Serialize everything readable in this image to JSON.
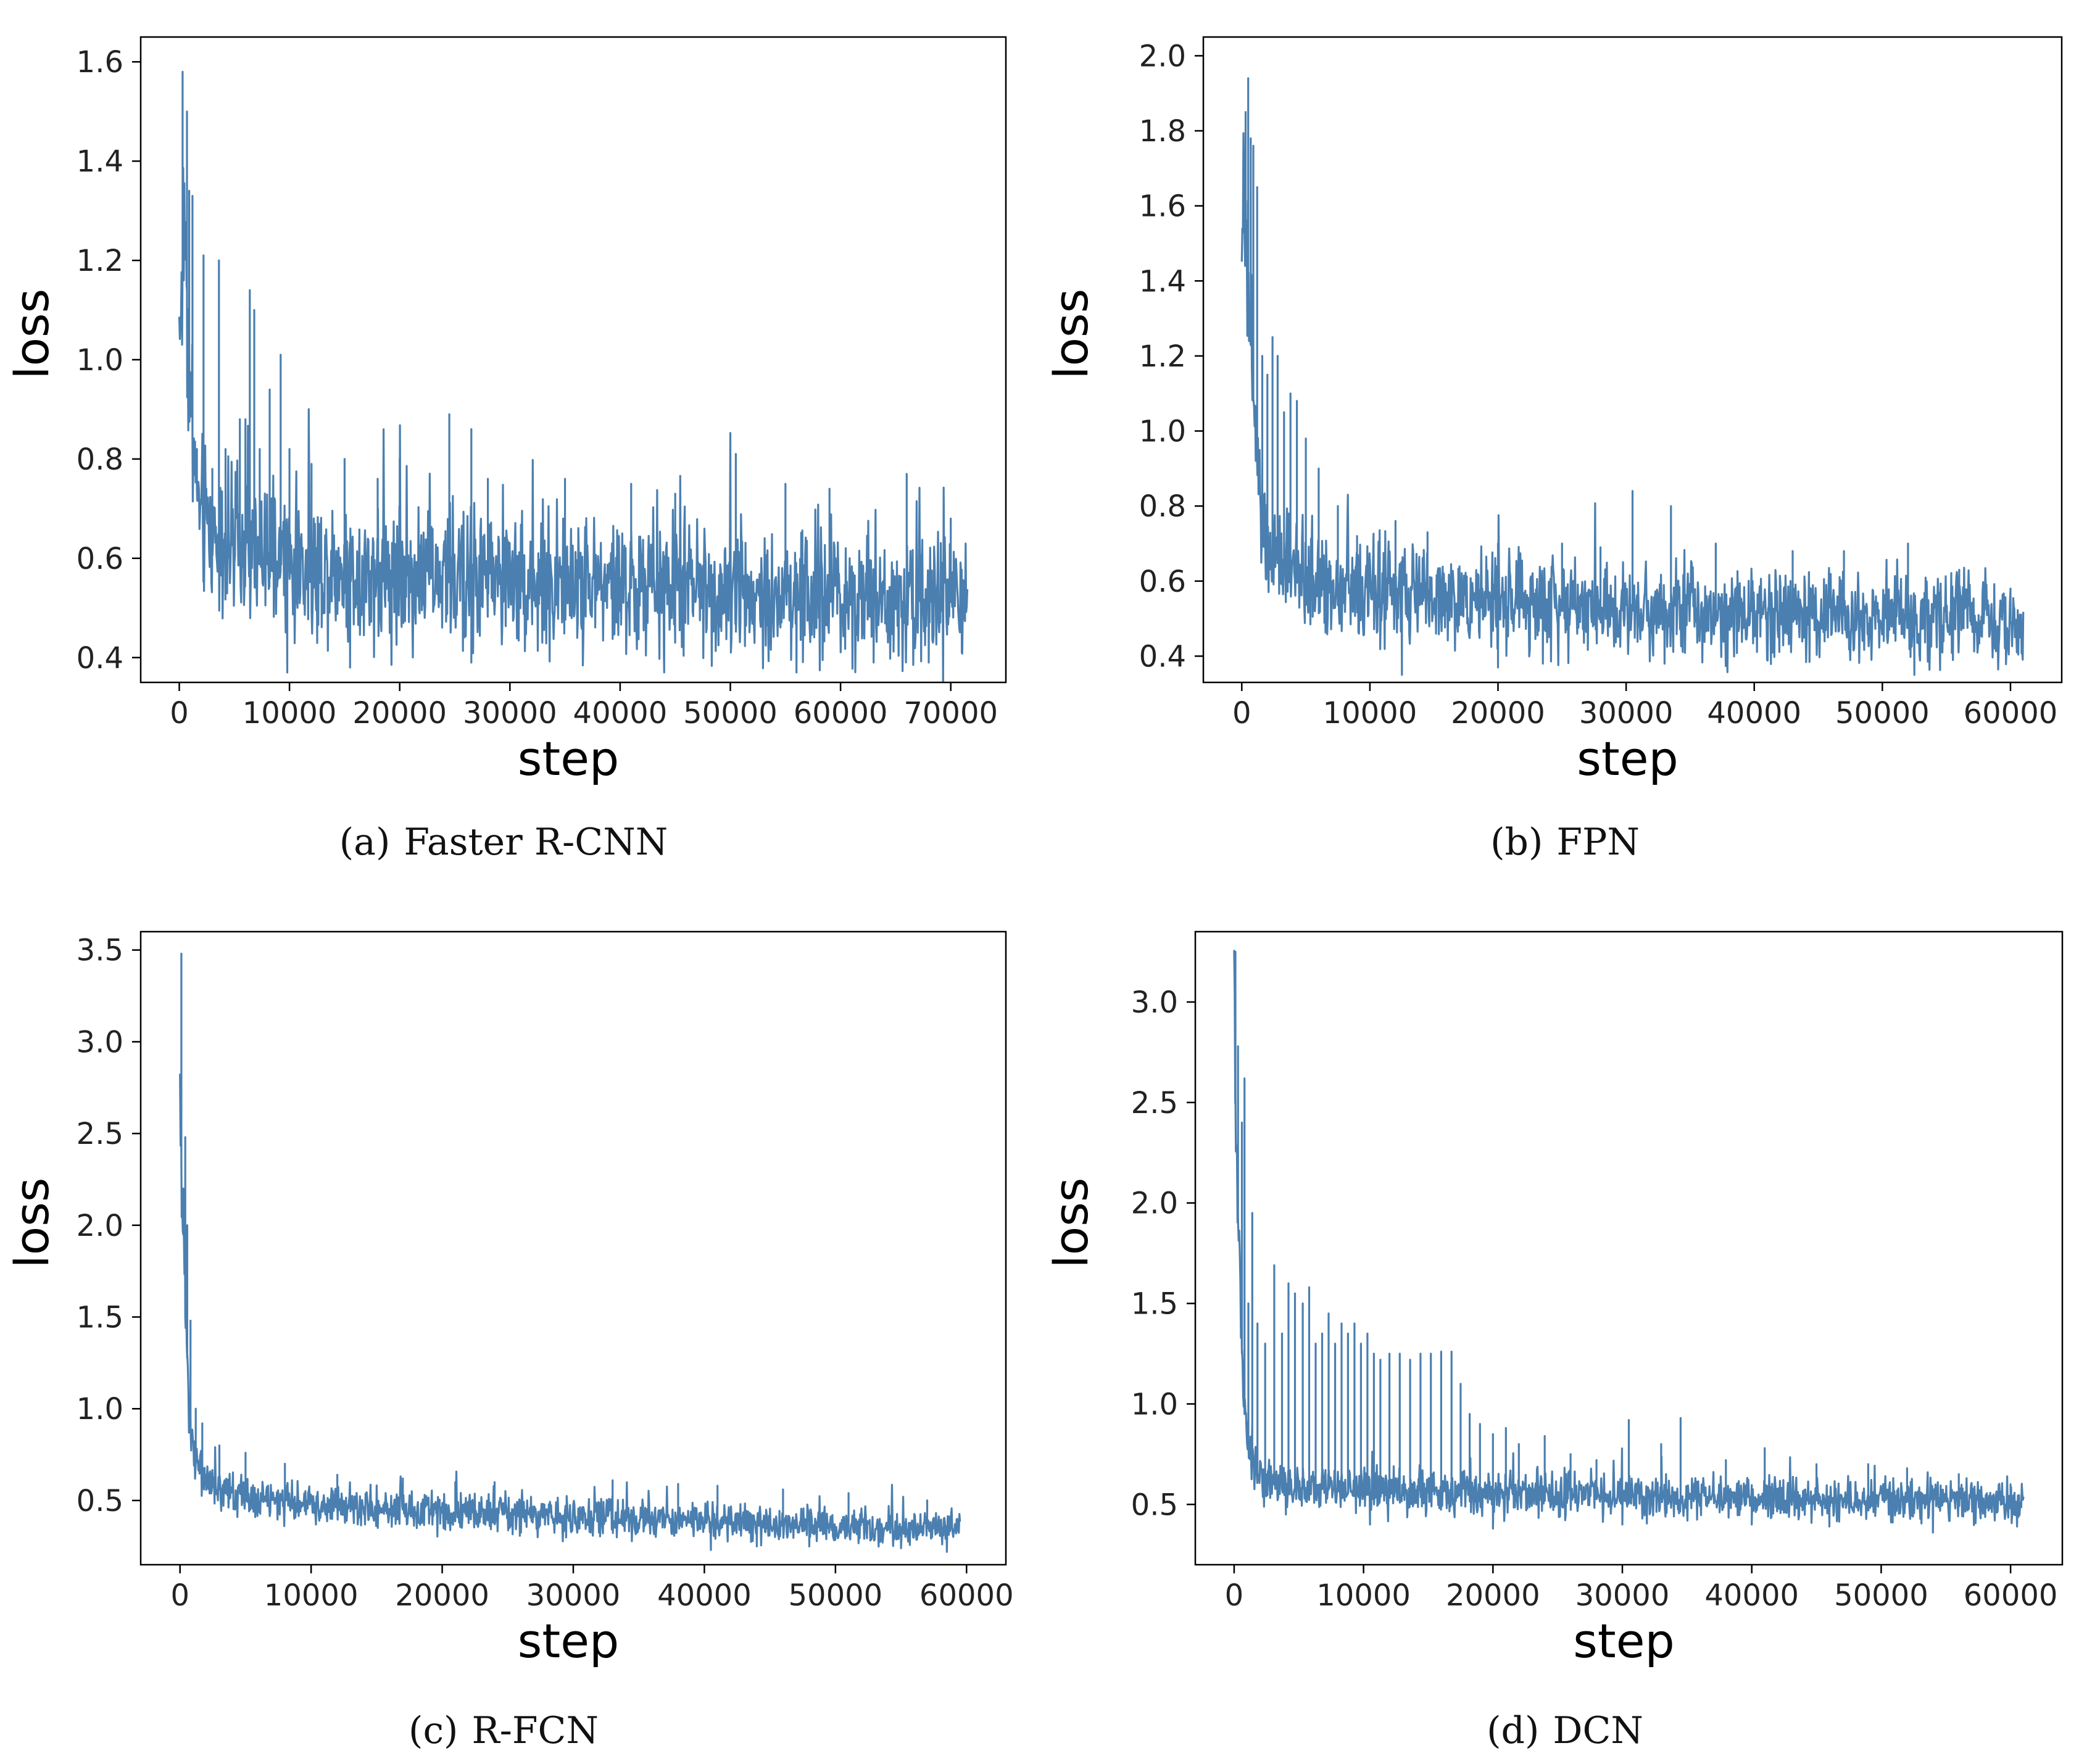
{
  "figure": {
    "charts": [
      {
        "id": "a",
        "caption_label": "(a)",
        "caption_text": "Faster R-CNN"
      },
      {
        "id": "b",
        "caption_label": "(b)",
        "caption_text": "FPN"
      },
      {
        "id": "c",
        "caption_label": "(c)",
        "caption_text": "R-FCN"
      },
      {
        "id": "d",
        "caption_label": "(d)",
        "caption_text": "DCN"
      }
    ],
    "line_color": "#4a7fb0"
  },
  "chart_data": [
    {
      "type": "line",
      "title": "Faster R-CNN",
      "xlabel": "step",
      "ylabel": "loss",
      "xlim": [
        -3500,
        75000
      ],
      "ylim": [
        0.35,
        1.65
      ],
      "xticks": [
        0,
        10000,
        20000,
        30000,
        40000,
        50000,
        60000,
        70000
      ],
      "xtick_labels": [
        "0",
        "10000",
        "20000",
        "30000",
        "40000",
        "50000",
        "60000",
        "70000"
      ],
      "yticks": [
        0.4,
        0.6,
        0.8,
        1.0,
        1.2,
        1.4,
        1.6
      ],
      "ytick_labels": [
        "0.4",
        "0.6",
        "0.8",
        "1.0",
        "1.2",
        "1.4",
        "1.6"
      ],
      "x": [
        0,
        500,
        1000,
        1500,
        2000,
        3000,
        4000,
        5000,
        6000,
        7000,
        8000,
        9000,
        10000,
        12000,
        14000,
        16000,
        18000,
        20000,
        22000,
        24000,
        26000,
        28000,
        30000,
        32000,
        34000,
        36000,
        38000,
        40000,
        42000,
        44000,
        46000,
        48000,
        50000,
        52000,
        54000,
        56000,
        58000,
        60000,
        62000,
        64000,
        66000,
        68000,
        70000,
        71500
      ],
      "y": [
        1.05,
        1.3,
        0.9,
        0.75,
        0.68,
        0.65,
        0.63,
        0.62,
        0.61,
        0.6,
        0.6,
        0.59,
        0.59,
        0.58,
        0.58,
        0.57,
        0.57,
        0.57,
        0.57,
        0.56,
        0.56,
        0.56,
        0.56,
        0.55,
        0.55,
        0.55,
        0.55,
        0.54,
        0.54,
        0.54,
        0.54,
        0.54,
        0.54,
        0.53,
        0.53,
        0.53,
        0.53,
        0.53,
        0.53,
        0.53,
        0.52,
        0.52,
        0.52,
        0.52
      ],
      "noise_spread": 0.065,
      "spikes": [
        [
          300,
          1.58
        ],
        [
          700,
          1.5
        ],
        [
          900,
          1.34
        ],
        [
          1200,
          1.33
        ],
        [
          1600,
          0.82
        ],
        [
          2200,
          1.21
        ],
        [
          3000,
          0.78
        ],
        [
          3600,
          1.2
        ],
        [
          4200,
          0.82
        ],
        [
          5500,
          0.88
        ],
        [
          6000,
          0.88
        ],
        [
          6400,
          1.14
        ],
        [
          6800,
          1.1
        ],
        [
          7300,
          0.82
        ],
        [
          8200,
          0.94
        ],
        [
          9200,
          1.01
        ],
        [
          10000,
          0.82
        ],
        [
          12000,
          0.79
        ],
        [
          15000,
          0.8
        ],
        [
          18000,
          0.76
        ],
        [
          20000,
          0.8
        ],
        [
          24500,
          0.89
        ],
        [
          26500,
          0.86
        ],
        [
          28000,
          0.76
        ],
        [
          35000,
          0.76
        ],
        [
          41000,
          0.75
        ],
        [
          45000,
          0.73
        ],
        [
          50500,
          0.81
        ],
        [
          55000,
          0.75
        ],
        [
          59000,
          0.74
        ],
        [
          66000,
          0.77
        ],
        [
          70000,
          0.68
        ]
      ],
      "dips": [
        [
          9800,
          0.37
        ],
        [
          15500,
          0.38
        ],
        [
          26500,
          0.39
        ],
        [
          44000,
          0.37
        ],
        [
          56000,
          0.37
        ],
        [
          63000,
          0.39
        ],
        [
          68000,
          0.39
        ],
        [
          71000,
          0.41
        ]
      ]
    },
    {
      "type": "line",
      "title": "FPN",
      "xlabel": "step",
      "ylabel": "loss",
      "xlim": [
        -3000,
        64000
      ],
      "ylim": [
        0.33,
        2.05
      ],
      "xticks": [
        0,
        10000,
        20000,
        30000,
        40000,
        50000,
        60000
      ],
      "xtick_labels": [
        "0",
        "10000",
        "20000",
        "30000",
        "40000",
        "50000",
        "60000"
      ],
      "yticks": [
        0.4,
        0.6,
        0.8,
        1.0,
        1.2,
        1.4,
        1.6,
        1.8,
        2.0
      ],
      "ytick_labels": [
        "0.4",
        "0.6",
        "0.8",
        "1.0",
        "1.2",
        "1.4",
        "1.6",
        "1.8",
        "2.0"
      ],
      "x": [
        0,
        500,
        1000,
        1500,
        2000,
        3000,
        4000,
        5000,
        6000,
        8000,
        10000,
        12000,
        14000,
        16000,
        18000,
        20000,
        22000,
        24000,
        26000,
        28000,
        30000,
        32000,
        34000,
        36000,
        38000,
        40000,
        42000,
        44000,
        46000,
        48000,
        50000,
        52000,
        54000,
        56000,
        58000,
        60000,
        61000
      ],
      "y": [
        1.6,
        1.4,
        1.0,
        0.78,
        0.68,
        0.64,
        0.62,
        0.6,
        0.59,
        0.58,
        0.57,
        0.56,
        0.56,
        0.55,
        0.55,
        0.54,
        0.54,
        0.54,
        0.54,
        0.53,
        0.53,
        0.53,
        0.53,
        0.52,
        0.52,
        0.52,
        0.52,
        0.51,
        0.51,
        0.51,
        0.51,
        0.5,
        0.5,
        0.5,
        0.5,
        0.49,
        0.48
      ],
      "noise_spread": 0.055,
      "spikes": [
        [
          300,
          1.85
        ],
        [
          500,
          1.94
        ],
        [
          700,
          1.78
        ],
        [
          900,
          1.76
        ],
        [
          1200,
          1.65
        ],
        [
          1600,
          1.2
        ],
        [
          2000,
          1.15
        ],
        [
          2400,
          1.25
        ],
        [
          2800,
          1.2
        ],
        [
          3300,
          1.05
        ],
        [
          3800,
          1.1
        ],
        [
          4300,
          1.08
        ],
        [
          5000,
          0.98
        ],
        [
          6000,
          0.9
        ],
        [
          7500,
          0.8
        ],
        [
          9000,
          0.72
        ],
        [
          12000,
          0.76
        ],
        [
          14500,
          0.73
        ],
        [
          20000,
          0.7
        ],
        [
          25000,
          0.7
        ],
        [
          28000,
          0.69
        ],
        [
          30500,
          0.84
        ],
        [
          33500,
          0.8
        ],
        [
          37000,
          0.7
        ],
        [
          43000,
          0.68
        ],
        [
          47000,
          0.68
        ],
        [
          52000,
          0.7
        ],
        [
          56000,
          0.63
        ],
        [
          60000,
          0.58
        ]
      ],
      "dips": [
        [
          12500,
          0.35
        ],
        [
          20000,
          0.37
        ],
        [
          23500,
          0.38
        ],
        [
          33000,
          0.38
        ],
        [
          41000,
          0.39
        ],
        [
          52500,
          0.35
        ],
        [
          60500,
          0.41
        ]
      ]
    },
    {
      "type": "line",
      "title": "R-FCN",
      "xlabel": "step",
      "ylabel": "loss",
      "xlim": [
        -3000,
        63000
      ],
      "ylim": [
        0.15,
        3.6
      ],
      "xticks": [
        0,
        10000,
        20000,
        30000,
        40000,
        50000,
        60000
      ],
      "xtick_labels": [
        "0",
        "10000",
        "20000",
        "30000",
        "40000",
        "50000",
        "60000"
      ],
      "yticks": [
        0.5,
        1.0,
        1.5,
        2.0,
        2.5,
        3.0,
        3.5
      ],
      "ytick_labels": [
        "0.5",
        "1.0",
        "1.5",
        "2.0",
        "2.5",
        "3.0",
        "3.5"
      ],
      "x": [
        0,
        200,
        400,
        700,
        1000,
        1500,
        2000,
        3000,
        4000,
        5000,
        6000,
        8000,
        10000,
        12000,
        14000,
        16000,
        18000,
        20000,
        22000,
        24000,
        26000,
        28000,
        30000,
        32000,
        34000,
        36000,
        38000,
        40000,
        42000,
        44000,
        46000,
        48000,
        50000,
        52000,
        54000,
        56000,
        58000,
        59500
      ],
      "y": [
        2.6,
        2.1,
        1.5,
        1.05,
        0.8,
        0.68,
        0.62,
        0.57,
        0.54,
        0.52,
        0.51,
        0.49,
        0.48,
        0.47,
        0.46,
        0.45,
        0.45,
        0.44,
        0.44,
        0.43,
        0.42,
        0.42,
        0.41,
        0.41,
        0.4,
        0.4,
        0.39,
        0.39,
        0.38,
        0.38,
        0.37,
        0.37,
        0.36,
        0.36,
        0.35,
        0.35,
        0.35,
        0.34
      ],
      "noise_spread": 0.045,
      "spikes": [
        [
          100,
          3.48
        ],
        [
          250,
          2.2
        ],
        [
          400,
          2.48
        ],
        [
          550,
          2.0
        ],
        [
          800,
          1.48
        ],
        [
          1200,
          1.0
        ],
        [
          1700,
          0.92
        ],
        [
          3000,
          0.8
        ],
        [
          5000,
          0.76
        ],
        [
          8000,
          0.7
        ],
        [
          12000,
          0.64
        ],
        [
          17000,
          0.62
        ],
        [
          21000,
          0.6
        ],
        [
          24000,
          0.6
        ],
        [
          33000,
          0.61
        ],
        [
          38000,
          0.59
        ],
        [
          41000,
          0.58
        ],
        [
          46000,
          0.56
        ],
        [
          51000,
          0.54
        ],
        [
          57000,
          0.5
        ]
      ],
      "dips": [
        [
          40500,
          0.23
        ],
        [
          44000,
          0.25
        ],
        [
          48000,
          0.25
        ],
        [
          55000,
          0.24
        ],
        [
          58500,
          0.22
        ]
      ]
    },
    {
      "type": "line",
      "title": "DCN",
      "xlabel": "step",
      "ylabel": "loss",
      "xlim": [
        -3000,
        64000
      ],
      "ylim": [
        0.2,
        3.35
      ],
      "xticks": [
        0,
        10000,
        20000,
        30000,
        40000,
        50000,
        60000
      ],
      "xtick_labels": [
        "0",
        "10000",
        "20000",
        "30000",
        "40000",
        "50000",
        "60000"
      ],
      "yticks": [
        0.5,
        1.0,
        1.5,
        2.0,
        2.5,
        3.0
      ],
      "ytick_labels": [
        "0.5",
        "1.0",
        "1.5",
        "2.0",
        "2.5",
        "3.0"
      ],
      "x": [
        0,
        200,
        500,
        800,
        1200,
        1600,
        2000,
        3000,
        4000,
        5000,
        6000,
        8000,
        10000,
        12000,
        14000,
        16000,
        18000,
        20000,
        22000,
        24000,
        26000,
        28000,
        30000,
        32000,
        34000,
        36000,
        38000,
        40000,
        42000,
        44000,
        46000,
        48000,
        50000,
        52000,
        54000,
        56000,
        58000,
        60000,
        61000
      ],
      "y": [
        2.9,
        2.2,
        1.4,
        0.95,
        0.75,
        0.68,
        0.64,
        0.6,
        0.59,
        0.58,
        0.58,
        0.57,
        0.57,
        0.56,
        0.56,
        0.56,
        0.55,
        0.55,
        0.55,
        0.55,
        0.54,
        0.54,
        0.54,
        0.54,
        0.53,
        0.53,
        0.53,
        0.53,
        0.53,
        0.52,
        0.52,
        0.52,
        0.52,
        0.52,
        0.52,
        0.52,
        0.51,
        0.51,
        0.51
      ],
      "noise_spread": 0.05,
      "spikes": [
        [
          100,
          3.25
        ],
        [
          300,
          2.78
        ],
        [
          600,
          2.4
        ],
        [
          800,
          2.62
        ],
        [
          1100,
          1.5
        ],
        [
          1400,
          1.95
        ],
        [
          1800,
          1.4
        ],
        [
          2400,
          1.3
        ],
        [
          3100,
          1.69
        ],
        [
          3700,
          1.35
        ],
        [
          4200,
          1.6
        ],
        [
          4700,
          1.55
        ],
        [
          5300,
          1.5
        ],
        [
          5800,
          1.58
        ],
        [
          6300,
          1.3
        ],
        [
          6800,
          1.35
        ],
        [
          7300,
          1.45
        ],
        [
          7800,
          1.3
        ],
        [
          8300,
          1.4
        ],
        [
          8800,
          1.35
        ],
        [
          9300,
          1.4
        ],
        [
          9800,
          1.3
        ],
        [
          10300,
          1.35
        ],
        [
          10800,
          1.25
        ],
        [
          11300,
          1.22
        ],
        [
          12000,
          1.25
        ],
        [
          12800,
          1.25
        ],
        [
          13600,
          1.22
        ],
        [
          14400,
          1.25
        ],
        [
          15200,
          1.25
        ],
        [
          16000,
          1.26
        ],
        [
          16800,
          1.26
        ],
        [
          17500,
          1.1
        ],
        [
          18200,
          0.95
        ],
        [
          19000,
          0.9
        ],
        [
          20000,
          0.85
        ],
        [
          21000,
          0.88
        ],
        [
          22000,
          0.8
        ],
        [
          24000,
          0.84
        ],
        [
          26000,
          0.75
        ],
        [
          28000,
          0.72
        ],
        [
          30500,
          0.92
        ],
        [
          33000,
          0.8
        ],
        [
          34500,
          0.93
        ],
        [
          38000,
          0.72
        ],
        [
          41000,
          0.78
        ],
        [
          45000,
          0.7
        ],
        [
          49000,
          0.7
        ],
        [
          52000,
          0.68
        ],
        [
          56000,
          0.65
        ],
        [
          60000,
          0.6
        ]
      ],
      "dips": [
        [
          4000,
          0.45
        ],
        [
          10500,
          0.4
        ],
        [
          20000,
          0.38
        ],
        [
          30000,
          0.4
        ],
        [
          40000,
          0.4
        ],
        [
          46000,
          0.39
        ],
        [
          54000,
          0.36
        ],
        [
          60500,
          0.39
        ]
      ]
    }
  ]
}
